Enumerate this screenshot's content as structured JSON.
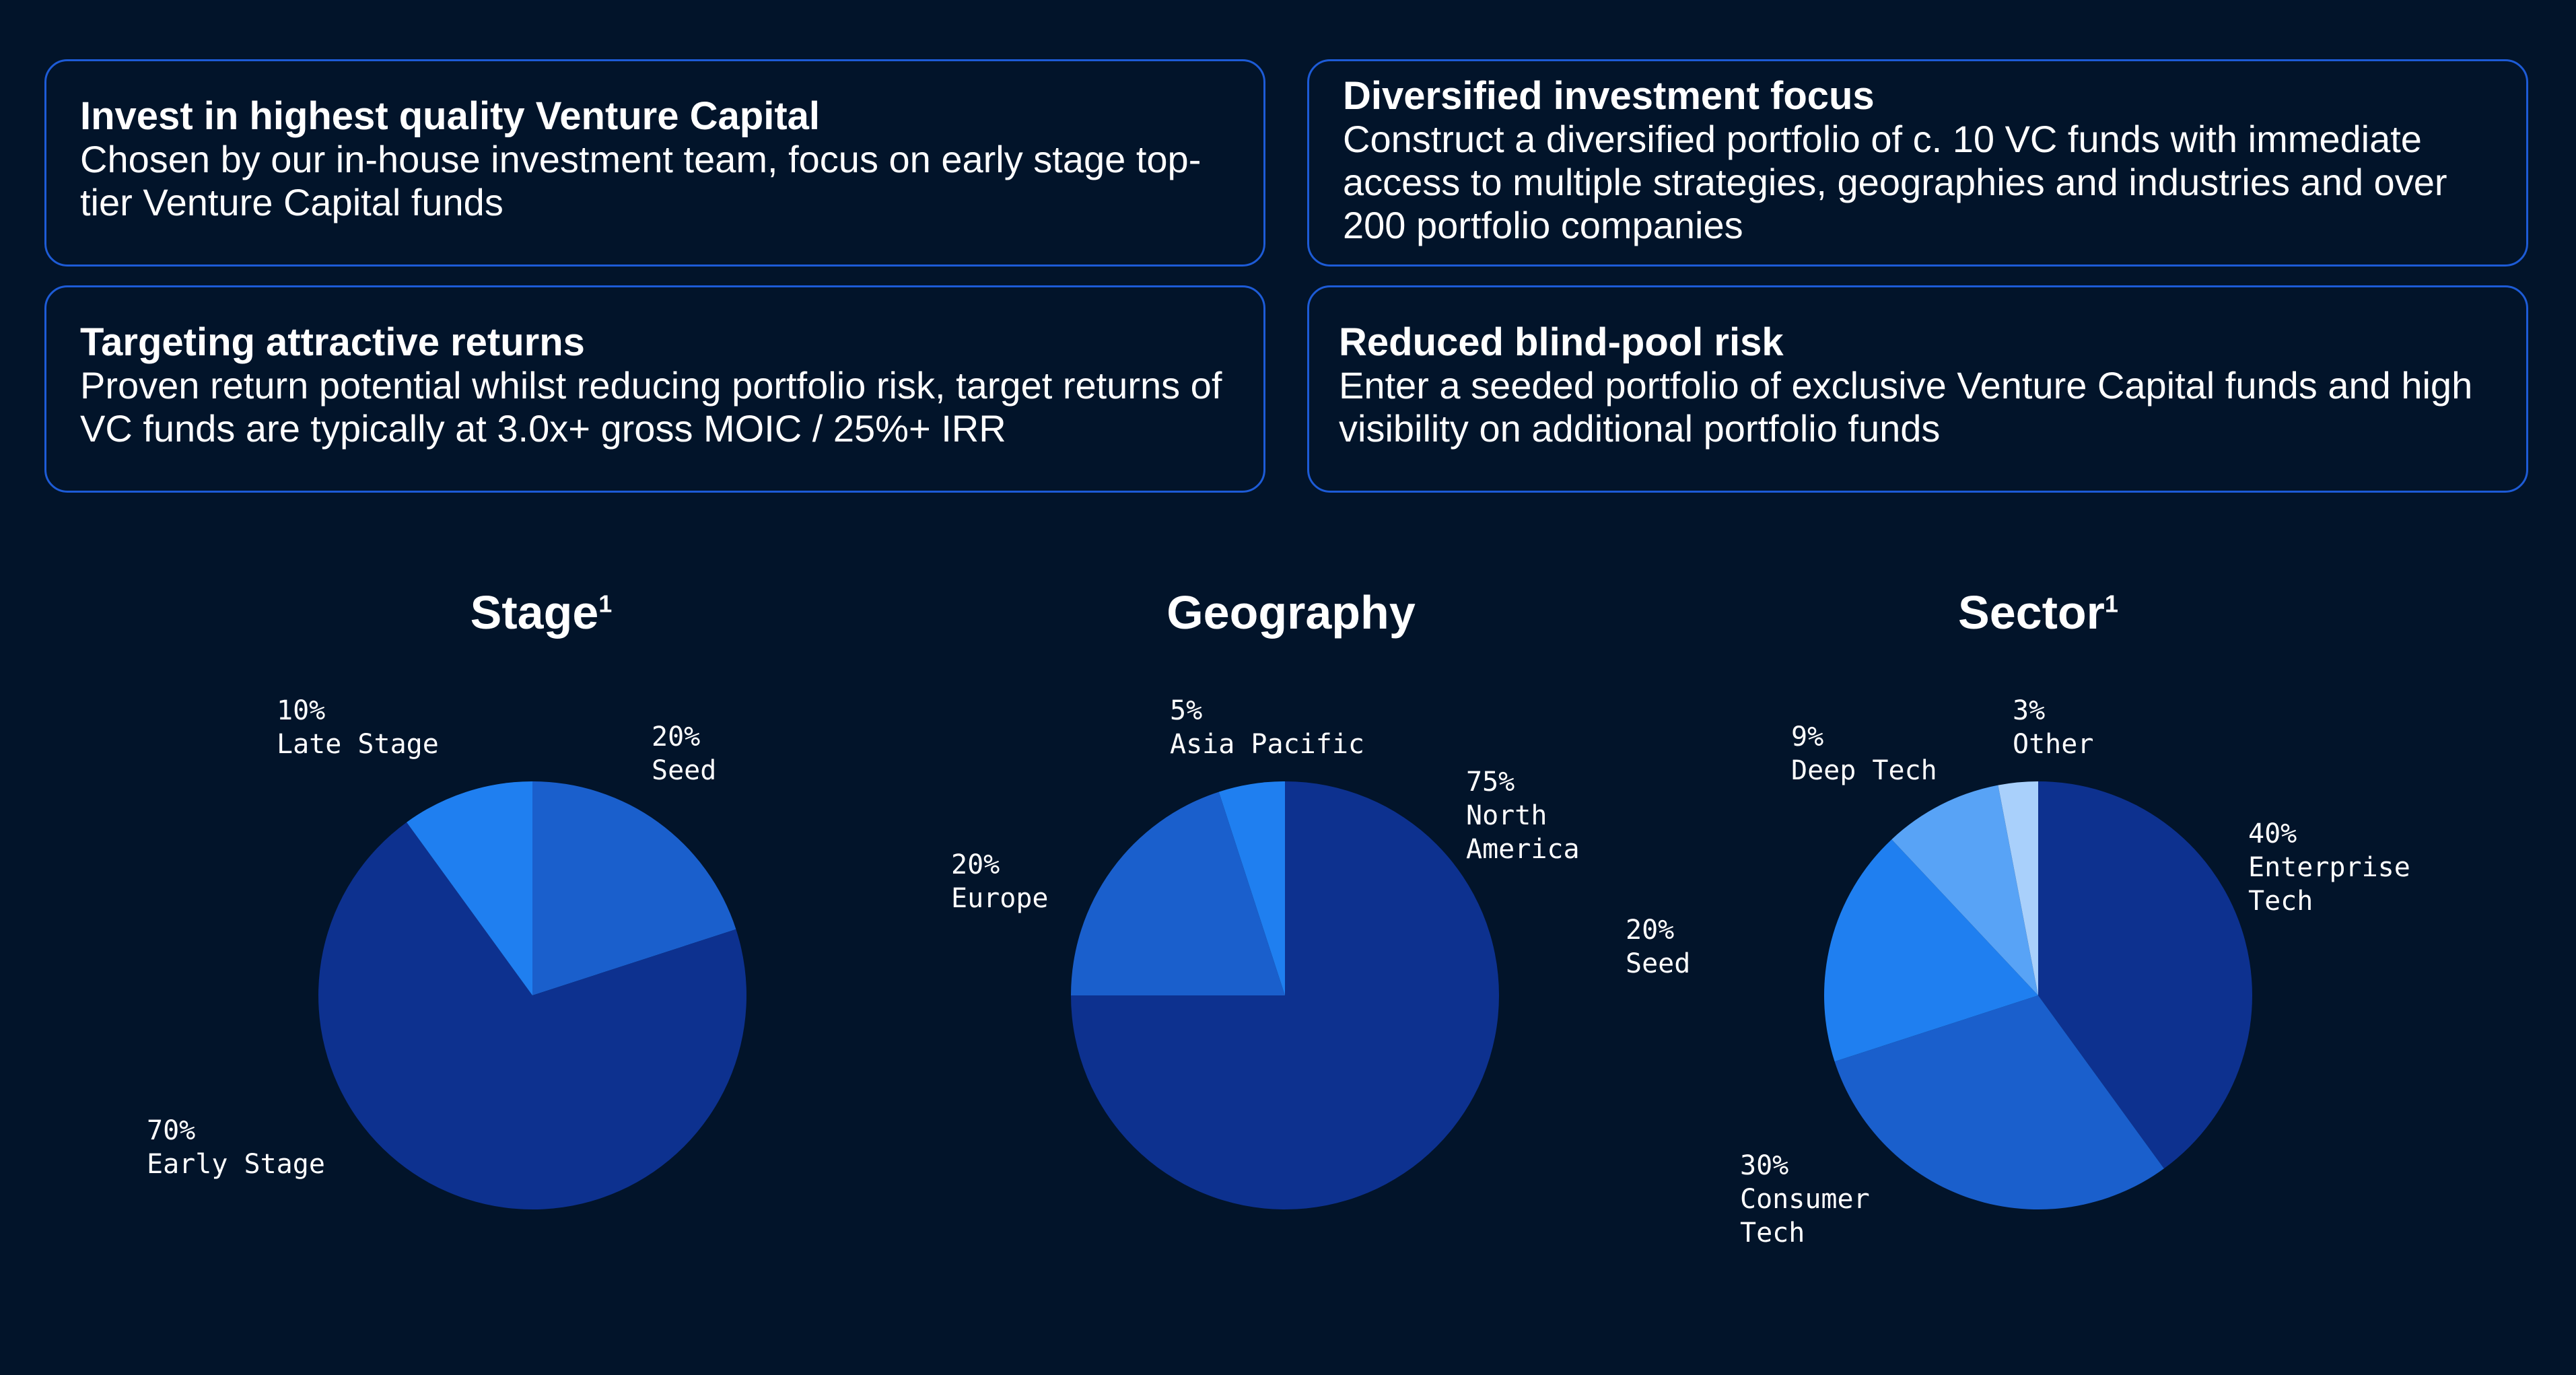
{
  "cards": [
    {
      "title": "Invest in highest quality Venture Capital",
      "body": "Chosen by our in-house investment team, focus on early stage top-tier Venture Capital funds"
    },
    {
      "title": "Diversified investment focus",
      "body": "Construct a diversified portfolio of c. 10 VC funds with immediate access to multiple strategies, geographies and industries and over 200 portfolio companies"
    },
    {
      "title": "Targeting attractive returns",
      "body": "Proven return potential whilst reducing portfolio risk, target returns of VC funds are typically at 3.0x+ gross MOIC / 25%+ IRR"
    },
    {
      "title": "Reduced blind-pool risk",
      "body": "Enter a seeded portfolio of exclusive Venture Capital funds and high visibility on additional portfolio funds"
    }
  ],
  "chart_data": [
    {
      "type": "pie",
      "title": "Stage",
      "title_sup": "1",
      "slices": [
        {
          "label": "Seed",
          "pct_text": "20%",
          "value": 20,
          "color": "#1a5fcc"
        },
        {
          "label": "Early Stage",
          "pct_text": "70%",
          "value": 70,
          "color": "#0d318f"
        },
        {
          "label": "Late Stage",
          "pct_text": "10%",
          "value": 10,
          "color": "#1f7ff0"
        }
      ]
    },
    {
      "type": "pie",
      "title": "Geography",
      "title_sup": "",
      "slices": [
        {
          "label": "North America",
          "pct_text": "75%",
          "value": 75,
          "color": "#0d318f"
        },
        {
          "label": "Europe",
          "pct_text": "20%",
          "value": 20,
          "color": "#1a5fcc"
        },
        {
          "label": "Asia Pacific",
          "pct_text": "5%",
          "value": 5,
          "color": "#1f7ff0"
        }
      ],
      "extra_label": {
        "label": "Seed",
        "pct_text": "20%"
      }
    },
    {
      "type": "pie",
      "title": "Sector",
      "title_sup": "1",
      "slices": [
        {
          "label": "Enterprise Tech",
          "pct_text": "40%",
          "value": 40,
          "color": "#0d318f"
        },
        {
          "label": "Consumer Tech",
          "pct_text": "30%",
          "value": 30,
          "color": "#1a5fcc"
        },
        {
          "label": "",
          "pct_text": "",
          "value": 18,
          "color": "#1f7ff0"
        },
        {
          "label": "Deep Tech",
          "pct_text": "9%",
          "value": 9,
          "color": "#58a3f6"
        },
        {
          "label": "Other",
          "pct_text": "3%",
          "value": 3,
          "color": "#a9d0fb"
        }
      ]
    }
  ]
}
